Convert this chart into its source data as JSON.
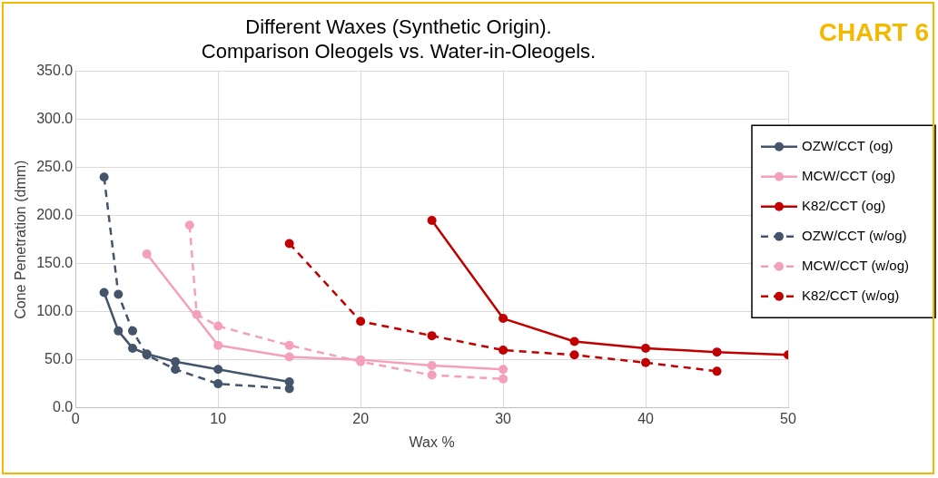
{
  "chart_data": {
    "type": "line",
    "title": [
      "Different Waxes (Synthetic Origin).",
      "Comparison Oleogels vs. Water-in-Oleogels."
    ],
    "xlabel": "Wax %",
    "ylabel": "Cone Penetration (dmm)",
    "annotations": [
      "CHART 6"
    ],
    "xlim": [
      0,
      50
    ],
    "xticks": [
      0,
      10,
      20,
      30,
      40,
      50
    ],
    "ylim": [
      0,
      350
    ],
    "yticks": [
      {
        "value": 0,
        "label": "0.0"
      },
      {
        "value": 50,
        "label": "50.0"
      },
      {
        "value": 100,
        "label": "100.0"
      },
      {
        "value": 150,
        "label": "150.0"
      },
      {
        "value": 200,
        "label": "200.0"
      },
      {
        "value": 250,
        "label": "250.0"
      },
      {
        "value": 300,
        "label": "300.0"
      },
      {
        "value": 350,
        "label": "350.0"
      }
    ],
    "grid": true,
    "legend": "right",
    "marker": "circle",
    "series": [
      {
        "name": "OZW/CCT (og)",
        "color": "#44546a",
        "line_style": "solid",
        "x": [
          2,
          3,
          4,
          5,
          7,
          10,
          15
        ],
        "values": [
          120,
          80,
          62,
          56,
          48,
          40,
          27
        ]
      },
      {
        "name": "MCW/CCT (og)",
        "color": "#f4a0bd",
        "line_style": "solid",
        "x": [
          5,
          10,
          15,
          20,
          25,
          30
        ],
        "values": [
          160,
          65,
          53,
          50,
          44,
          40
        ]
      },
      {
        "name": "K82/CCT (og)",
        "color": "#c00000",
        "line_style": "solid",
        "x": [
          25,
          30,
          35,
          40,
          45,
          50
        ],
        "values": [
          195,
          93,
          69,
          62,
          58,
          55
        ]
      },
      {
        "name": "OZW/CCT (w/og)",
        "color": "#44546a",
        "line_style": "dashed",
        "x": [
          2,
          3,
          4,
          5,
          7,
          10,
          15
        ],
        "values": [
          240,
          118,
          80,
          55,
          40,
          25,
          20
        ]
      },
      {
        "name": "MCW/CCT (w/og)",
        "color": "#f4a0bd",
        "line_style": "dashed",
        "x": [
          8,
          8.5,
          10,
          15,
          20,
          25,
          30
        ],
        "values": [
          190,
          97,
          85,
          65,
          48,
          34,
          30
        ]
      },
      {
        "name": "K82/CCT (w/og)",
        "color": "#c00000",
        "line_style": "dashed",
        "x": [
          15,
          20,
          25,
          30,
          35,
          40,
          45
        ],
        "values": [
          171,
          90,
          75,
          60,
          55,
          47,
          38
        ]
      }
    ]
  }
}
